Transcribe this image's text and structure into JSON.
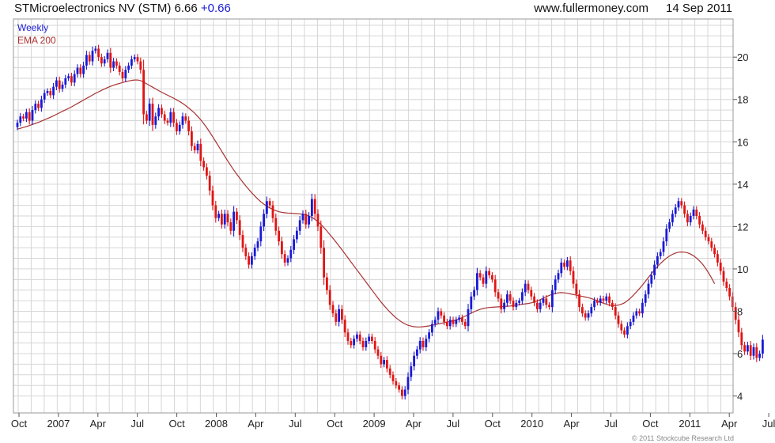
{
  "header": {
    "title": "STMicroelectronics NV (STM) 6.66",
    "change": "+0.66",
    "website": "www.fullermoney.com",
    "date": "14 Sep 2011"
  },
  "copyright": "© 2011 Stockcube Research Ltd",
  "colors": {
    "up": "#1a1ad6",
    "down": "#e01515",
    "ema": "#a83232",
    "grid": "#d6d6d6",
    "frame": "#9a9a9a"
  },
  "chart_data": {
    "type": "ohlc-bar",
    "x_ticks": [
      "Oct",
      "2007",
      "Apr",
      "Jul",
      "Oct",
      "2008",
      "Apr",
      "Jul",
      "Oct",
      "2009",
      "Apr",
      "Jul",
      "Oct",
      "2010",
      "Apr",
      "Jul",
      "Oct",
      "2011",
      "Apr",
      "Jul"
    ],
    "y_ticks": [
      4,
      6,
      8,
      10,
      12,
      14,
      16,
      18,
      20
    ],
    "ylim": [
      3.2,
      21.8
    ],
    "grid": true,
    "y_axis_side": "right",
    "series": [
      {
        "name": "Weekly",
        "interval": "weekly",
        "start": "2006-10-06",
        "close": [
          16.9,
          17.2,
          17.1,
          17.4,
          17.0,
          17.5,
          17.8,
          17.6,
          18.0,
          18.3,
          18.4,
          18.2,
          18.6,
          18.9,
          18.5,
          18.7,
          19.0,
          19.1,
          18.8,
          19.2,
          19.5,
          19.2,
          19.6,
          20.1,
          19.8,
          20.3,
          20.4,
          20.0,
          19.7,
          19.9,
          20.2,
          19.5,
          19.8,
          19.6,
          19.3,
          19.0,
          19.4,
          19.6,
          19.9,
          20.0,
          19.8,
          19.4,
          17.3,
          17.0,
          17.8,
          16.8,
          17.2,
          17.6,
          17.3,
          17.0,
          16.9,
          17.4,
          16.9,
          16.5,
          16.8,
          17.2,
          17.0,
          16.5,
          15.8,
          15.6,
          15.9,
          15.1,
          14.8,
          14.4,
          13.7,
          13.0,
          12.4,
          12.6,
          12.1,
          12.6,
          12.2,
          11.8,
          12.7,
          12.3,
          11.6,
          11.0,
          10.6,
          10.2,
          10.6,
          11.0,
          11.3,
          12.0,
          12.6,
          13.2,
          13.0,
          12.4,
          11.8,
          11.3,
          10.7,
          10.3,
          10.5,
          10.9,
          11.4,
          11.8,
          12.3,
          12.6,
          12.1,
          12.5,
          13.3,
          12.6,
          12.0,
          11.0,
          9.6,
          9.0,
          8.3,
          7.9,
          7.5,
          8.1,
          7.6,
          7.0,
          6.6,
          6.4,
          6.7,
          6.9,
          6.6,
          6.3,
          6.6,
          6.8,
          6.6,
          6.2,
          5.9,
          5.5,
          5.7,
          5.3,
          5.0,
          4.7,
          4.5,
          4.3,
          4.0,
          4.3,
          4.9,
          5.4,
          5.9,
          6.2,
          6.6,
          6.3,
          6.7,
          7.0,
          7.4,
          7.6,
          8.0,
          7.8,
          7.5,
          7.3,
          7.6,
          7.4,
          7.6,
          7.7,
          7.5,
          7.3,
          8.1,
          8.7,
          9.0,
          9.8,
          9.6,
          9.3,
          9.9,
          9.7,
          9.5,
          8.9,
          8.6,
          8.1,
          8.4,
          8.8,
          8.5,
          8.2,
          8.4,
          8.5,
          8.9,
          9.3,
          9.0,
          8.7,
          8.4,
          8.1,
          8.4,
          8.6,
          8.3,
          8.2,
          9.0,
          9.5,
          9.8,
          10.3,
          10.1,
          10.4,
          9.9,
          9.3,
          8.8,
          8.2,
          7.9,
          7.7,
          7.9,
          8.2,
          8.5,
          8.4,
          8.6,
          8.5,
          8.7,
          8.4,
          8.2,
          7.8,
          7.4,
          7.1,
          6.9,
          7.3,
          7.5,
          7.8,
          8.0,
          7.9,
          8.4,
          8.8,
          9.3,
          9.7,
          10.2,
          10.6,
          10.8,
          11.3,
          11.9,
          12.2,
          12.6,
          12.9,
          13.2,
          13.0,
          12.6,
          12.2,
          12.5,
          12.8,
          12.5,
          12.1,
          11.8,
          11.5,
          11.3,
          11.0,
          10.7,
          10.3,
          9.9,
          9.4,
          9.1,
          8.7,
          8.2,
          7.6,
          7.0,
          6.4,
          6.1,
          6.4,
          5.9,
          6.3,
          5.8,
          6.0,
          6.66
        ]
      },
      {
        "name": "EMA 200",
        "interval": "weekly",
        "start": "2006-10-06",
        "close": [
          16.6,
          16.64,
          16.68,
          16.72,
          16.77,
          16.82,
          16.87,
          16.92,
          16.98,
          17.04,
          17.1,
          17.16,
          17.23,
          17.3,
          17.37,
          17.44,
          17.51,
          17.58,
          17.65,
          17.73,
          17.81,
          17.89,
          17.97,
          18.05,
          18.13,
          18.21,
          18.29,
          18.36,
          18.43,
          18.5,
          18.56,
          18.62,
          18.67,
          18.72,
          18.76,
          18.8,
          18.84,
          18.87,
          18.9,
          18.92,
          18.92,
          18.89,
          18.82,
          18.74,
          18.66,
          18.58,
          18.5,
          18.42,
          18.34,
          18.27,
          18.2,
          18.13,
          18.06,
          17.98,
          17.9,
          17.81,
          17.71,
          17.6,
          17.48,
          17.35,
          17.2,
          17.04,
          16.86,
          16.67,
          16.46,
          16.24,
          16.01,
          15.78,
          15.55,
          15.32,
          15.1,
          14.88,
          14.67,
          14.47,
          14.28,
          14.1,
          13.92,
          13.75,
          13.59,
          13.44,
          13.3,
          13.17,
          13.06,
          12.96,
          12.88,
          12.81,
          12.75,
          12.7,
          12.67,
          12.65,
          12.64,
          12.63,
          12.62,
          12.61,
          12.6,
          12.58,
          12.55,
          12.5,
          12.43,
          12.34,
          12.23,
          12.1,
          11.95,
          11.79,
          11.62,
          11.45,
          11.27,
          11.09,
          10.9,
          10.71,
          10.52,
          10.33,
          10.14,
          9.95,
          9.76,
          9.57,
          9.38,
          9.19,
          9.0,
          8.81,
          8.62,
          8.44,
          8.27,
          8.11,
          7.96,
          7.82,
          7.69,
          7.58,
          7.48,
          7.4,
          7.34,
          7.3,
          7.27,
          7.26,
          7.26,
          7.27,
          7.29,
          7.31,
          7.34,
          7.37,
          7.4,
          7.43,
          7.46,
          7.49,
          7.52,
          7.55,
          7.59,
          7.64,
          7.7,
          7.77,
          7.84,
          7.91,
          7.98,
          8.04,
          8.09,
          8.13,
          8.16,
          8.18,
          8.19,
          8.2,
          8.21,
          8.22,
          8.23,
          8.24,
          8.25,
          8.27,
          8.29,
          8.31,
          8.33,
          8.35,
          8.37,
          8.4,
          8.44,
          8.49,
          8.55,
          8.62,
          8.69,
          8.75,
          8.8,
          8.84,
          8.87,
          8.88,
          8.87,
          8.85,
          8.82,
          8.79,
          8.76,
          8.73,
          8.7,
          8.67,
          8.64,
          8.6,
          8.55,
          8.5,
          8.44,
          8.38,
          8.33,
          8.29,
          8.27,
          8.27,
          8.29,
          8.33,
          8.4,
          8.5,
          8.62,
          8.76,
          8.91,
          9.07,
          9.24,
          9.42,
          9.6,
          9.78,
          9.95,
          10.11,
          10.26,
          10.39,
          10.51,
          10.61,
          10.69,
          10.75,
          10.79,
          10.8,
          10.79,
          10.76,
          10.7,
          10.62,
          10.51,
          10.38,
          10.22,
          10.03,
          9.81,
          9.57,
          9.3
        ]
      }
    ]
  }
}
